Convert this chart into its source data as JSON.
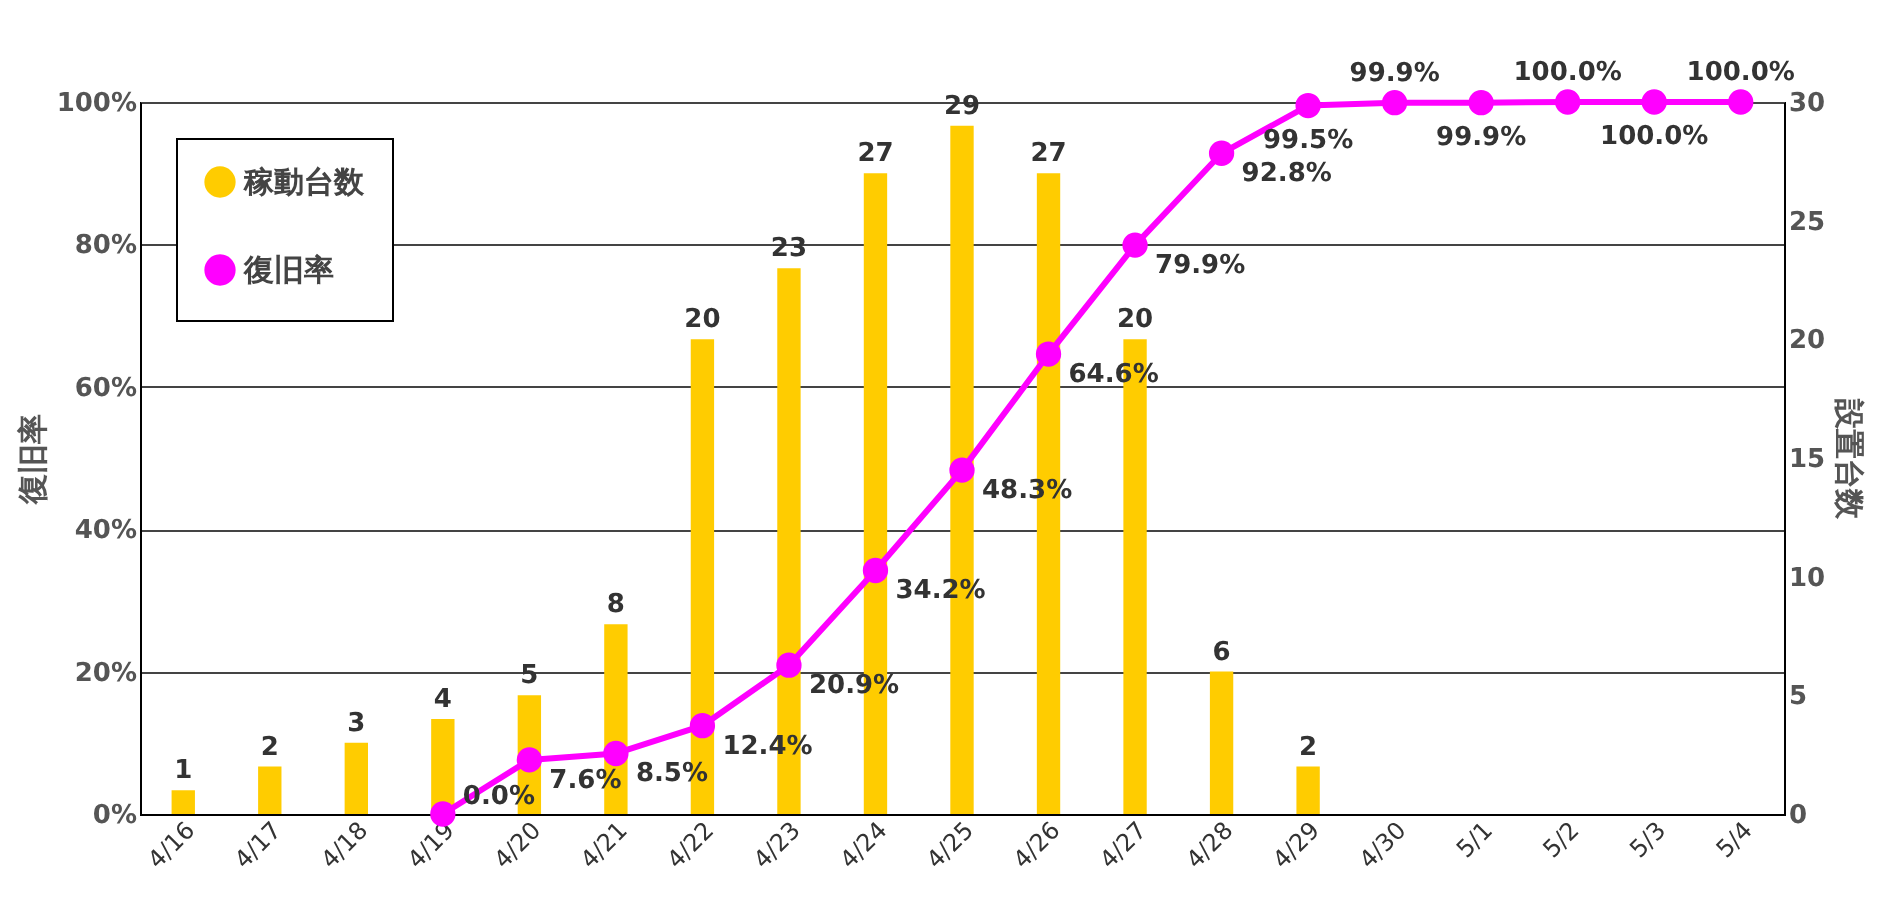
{
  "chart_data": {
    "type": "bar",
    "categories": [
      "4/16",
      "4/17",
      "4/18",
      "4/19",
      "4/20",
      "4/21",
      "4/22",
      "4/23",
      "4/24",
      "4/25",
      "4/26",
      "4/27",
      "4/28",
      "4/29",
      "4/30",
      "5/1",
      "5/2",
      "5/3",
      "5/4"
    ],
    "series": [
      {
        "name": "稼動台数",
        "type": "bar",
        "axis": "y2",
        "color": "#ffcc00",
        "values": [
          1,
          2,
          3,
          4,
          5,
          8,
          20,
          23,
          27,
          29,
          27,
          20,
          6,
          2,
          null,
          null,
          null,
          null,
          null
        ],
        "value_labels": [
          "1",
          "2",
          "3",
          "4",
          "5",
          "8",
          "20",
          "23",
          "27",
          "29",
          "27",
          "20",
          "6",
          "2",
          null,
          null,
          null,
          null,
          null
        ]
      },
      {
        "name": "復旧率",
        "type": "line",
        "color": "#ff00ff",
        "values": [
          null,
          null,
          null,
          0.0,
          7.6,
          8.5,
          12.4,
          20.9,
          34.2,
          48.3,
          64.6,
          79.9,
          92.8,
          99.5,
          99.9,
          99.9,
          100.0,
          100.0,
          100.0
        ],
        "value_labels": [
          null,
          null,
          null,
          "0.0%",
          "7.6%",
          "8.5%",
          "12.4%",
          "20.9%",
          "34.2%",
          "48.3%",
          "64.6%",
          "79.9%",
          "92.8%",
          "99.5%",
          "99.9%",
          "99.9%",
          "100.0%",
          "100.0%",
          "100.0%"
        ]
      }
    ],
    "ylabel": "復旧率",
    "y2label": "設置台数",
    "ylim": [
      0,
      100
    ],
    "yticks": [
      {
        "value": 0,
        "label": "0%"
      },
      {
        "value": 20,
        "label": "20%"
      },
      {
        "value": 40,
        "label": "40%"
      },
      {
        "value": 60,
        "label": "60%"
      },
      {
        "value": 80,
        "label": "80%"
      },
      {
        "value": 100,
        "label": "100%"
      }
    ],
    "y2lim": [
      0,
      30
    ],
    "y2ticks": [
      0,
      5,
      10,
      15,
      20,
      25,
      30
    ],
    "grid": "y",
    "legend": "top left",
    "marker": "circle"
  }
}
